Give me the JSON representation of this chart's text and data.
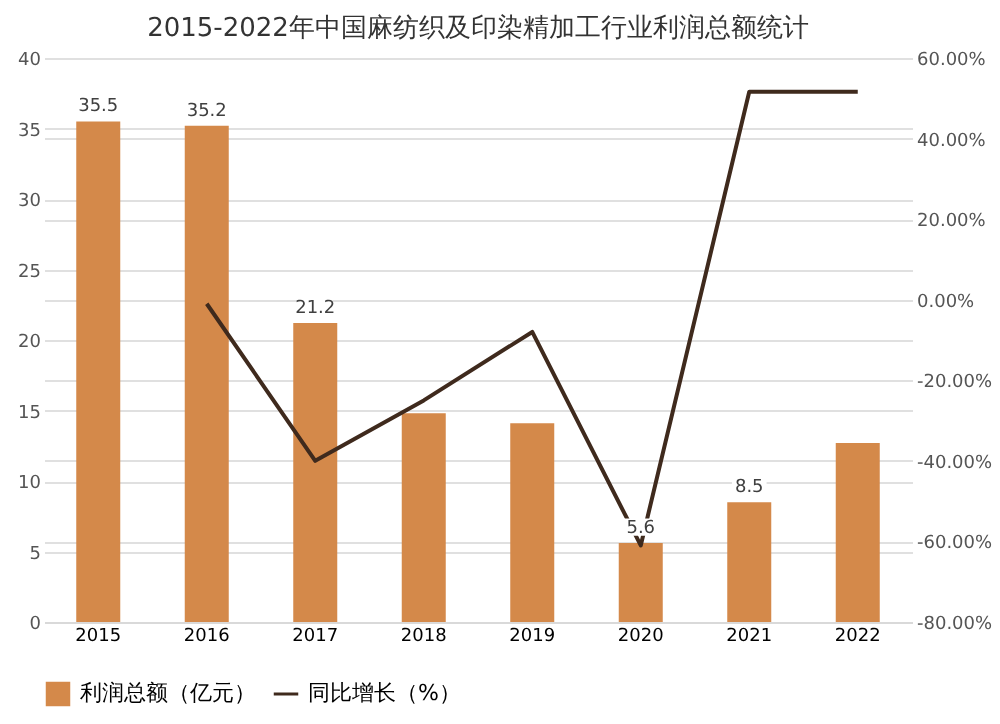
{
  "chart_data": {
    "type": "bar",
    "title": "2015-2022年中国麻纺织及印染精加工行业利润总额统计",
    "categories": [
      "2015",
      "2016",
      "2017",
      "2018",
      "2019",
      "2020",
      "2021",
      "2022"
    ],
    "series": [
      {
        "name": "利润总额（亿元）",
        "color": "#d4894a",
        "values": [
          35.5,
          35.2,
          21.2,
          14.8,
          14.1,
          5.6,
          8.5,
          12.7
        ],
        "value_labels": [
          "35.5",
          "35.2",
          "21.2",
          null,
          null,
          "5.6",
          "8.5",
          null
        ]
      },
      {
        "name": "同比增长（%）",
        "type": "line",
        "axis": "y2",
        "color": "#3f2a1d",
        "values": [
          null,
          -1,
          -40,
          -25,
          -8,
          -61,
          51.6,
          51.6
        ]
      }
    ],
    "ylim": [
      0,
      40
    ],
    "yticks": [
      0,
      5,
      10,
      15,
      20,
      25,
      30,
      35,
      40
    ],
    "y2lim": [
      -80,
      60
    ],
    "y2ticks": [
      {
        "value": -80,
        "label": "-80.00%"
      },
      {
        "value": -60,
        "label": "-60.00%"
      },
      {
        "value": -40,
        "label": "-40.00%"
      },
      {
        "value": -20,
        "label": "-20.00%"
      },
      {
        "value": 0,
        "label": "0.00%"
      },
      {
        "value": 20,
        "label": "20.00%"
      },
      {
        "value": 40,
        "label": "40.00%"
      },
      {
        "value": 60,
        "label": "60.00%"
      }
    ],
    "grid": "y",
    "legend": "bottom",
    "marker": "none"
  }
}
